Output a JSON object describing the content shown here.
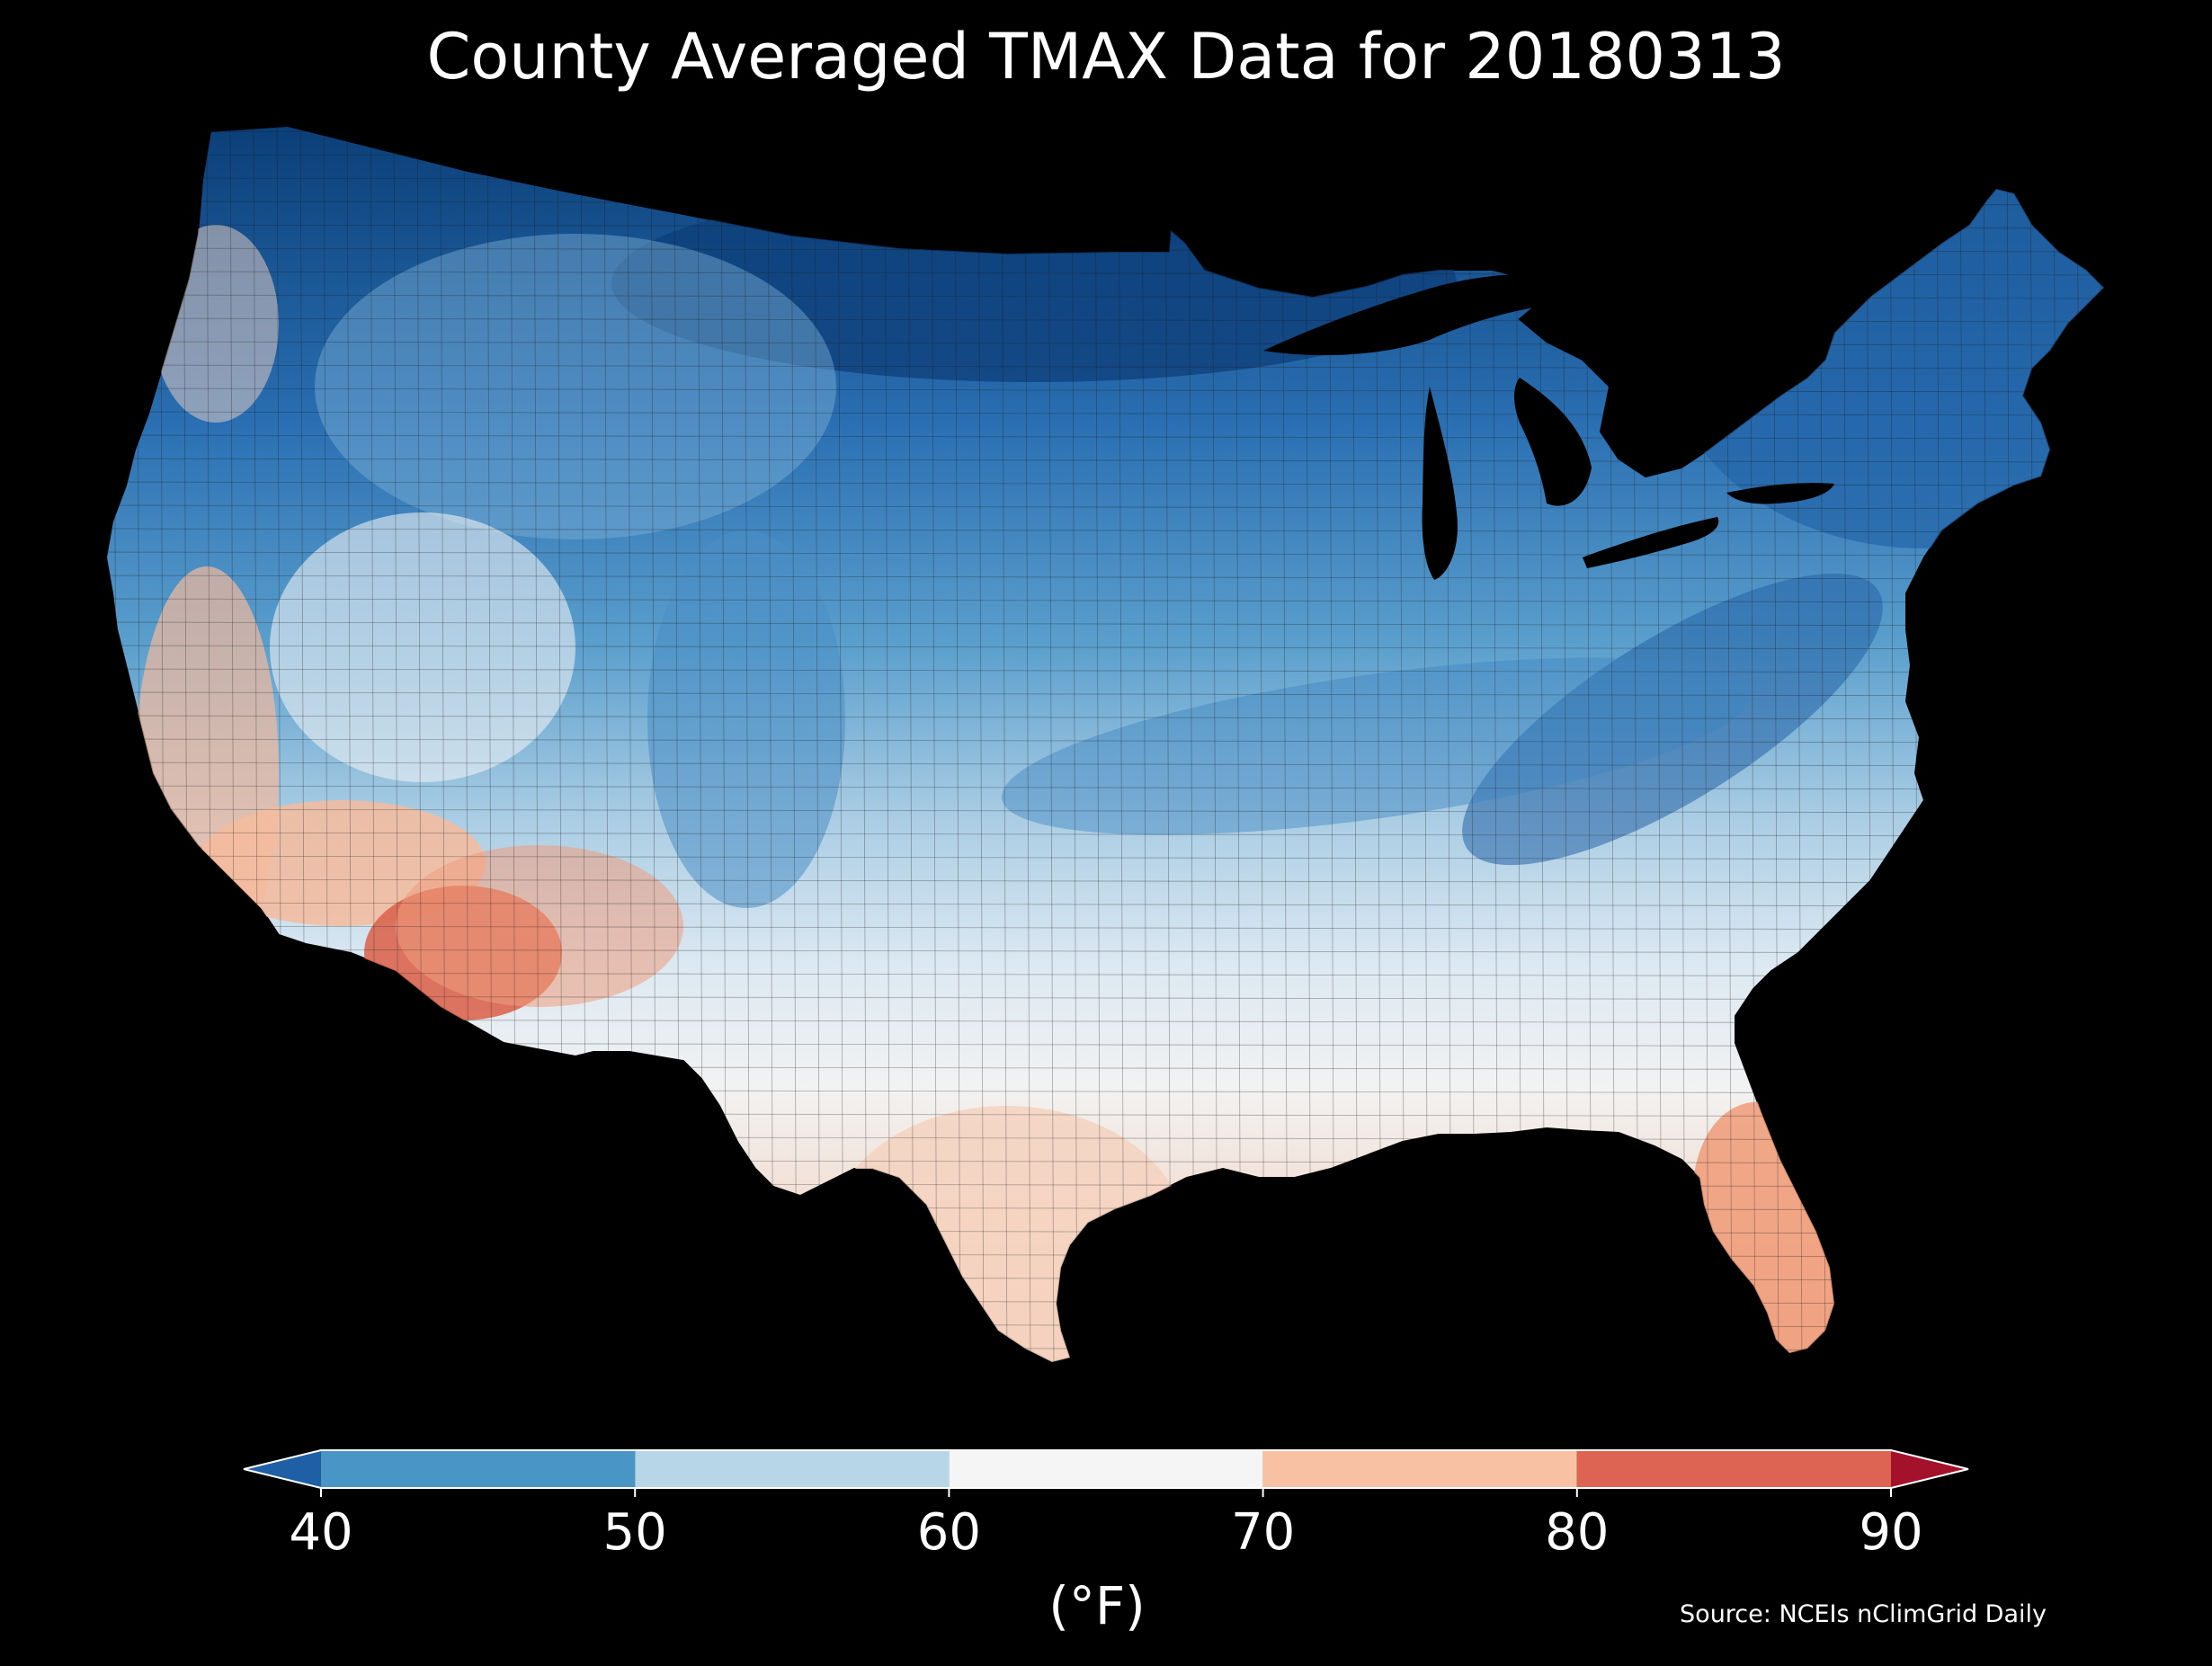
{
  "title": "County Averaged TMAX Data for 20180313",
  "source": "Source: NCEIs nClimGrid Daily",
  "colorbar": {
    "label": "(°F)",
    "ticks": [
      "40",
      "50",
      "60",
      "70",
      "80",
      "90"
    ],
    "bins": [
      {
        "from": null,
        "to": 40,
        "color": "#1f5fa5"
      },
      {
        "from": 40,
        "to": 50,
        "color": "#4895c6"
      },
      {
        "from": 50,
        "to": 60,
        "color": "#b7d6e8"
      },
      {
        "from": 60,
        "to": 70,
        "color": "#f5f5f5"
      },
      {
        "from": 70,
        "to": 80,
        "color": "#f8c1a3"
      },
      {
        "from": 80,
        "to": 90,
        "color": "#dd6453"
      },
      {
        "from": 90,
        "to": null,
        "color": "#a3122a"
      }
    ]
  },
  "map": {
    "extent": "contiguous-us",
    "background": "#000000",
    "gradient_stops": [
      {
        "offset": "0%",
        "color": "#0b3f78"
      },
      {
        "offset": "24%",
        "color": "#2a6fb2"
      },
      {
        "offset": "42%",
        "color": "#5b9fcd"
      },
      {
        "offset": "56%",
        "color": "#aacde4"
      },
      {
        "offset": "68%",
        "color": "#dde9f2"
      },
      {
        "offset": "78%",
        "color": "#f2f2f2"
      },
      {
        "offset": "90%",
        "color": "#f3d9cb"
      },
      {
        "offset": "100%",
        "color": "#f4cdb6"
      }
    ]
  }
}
